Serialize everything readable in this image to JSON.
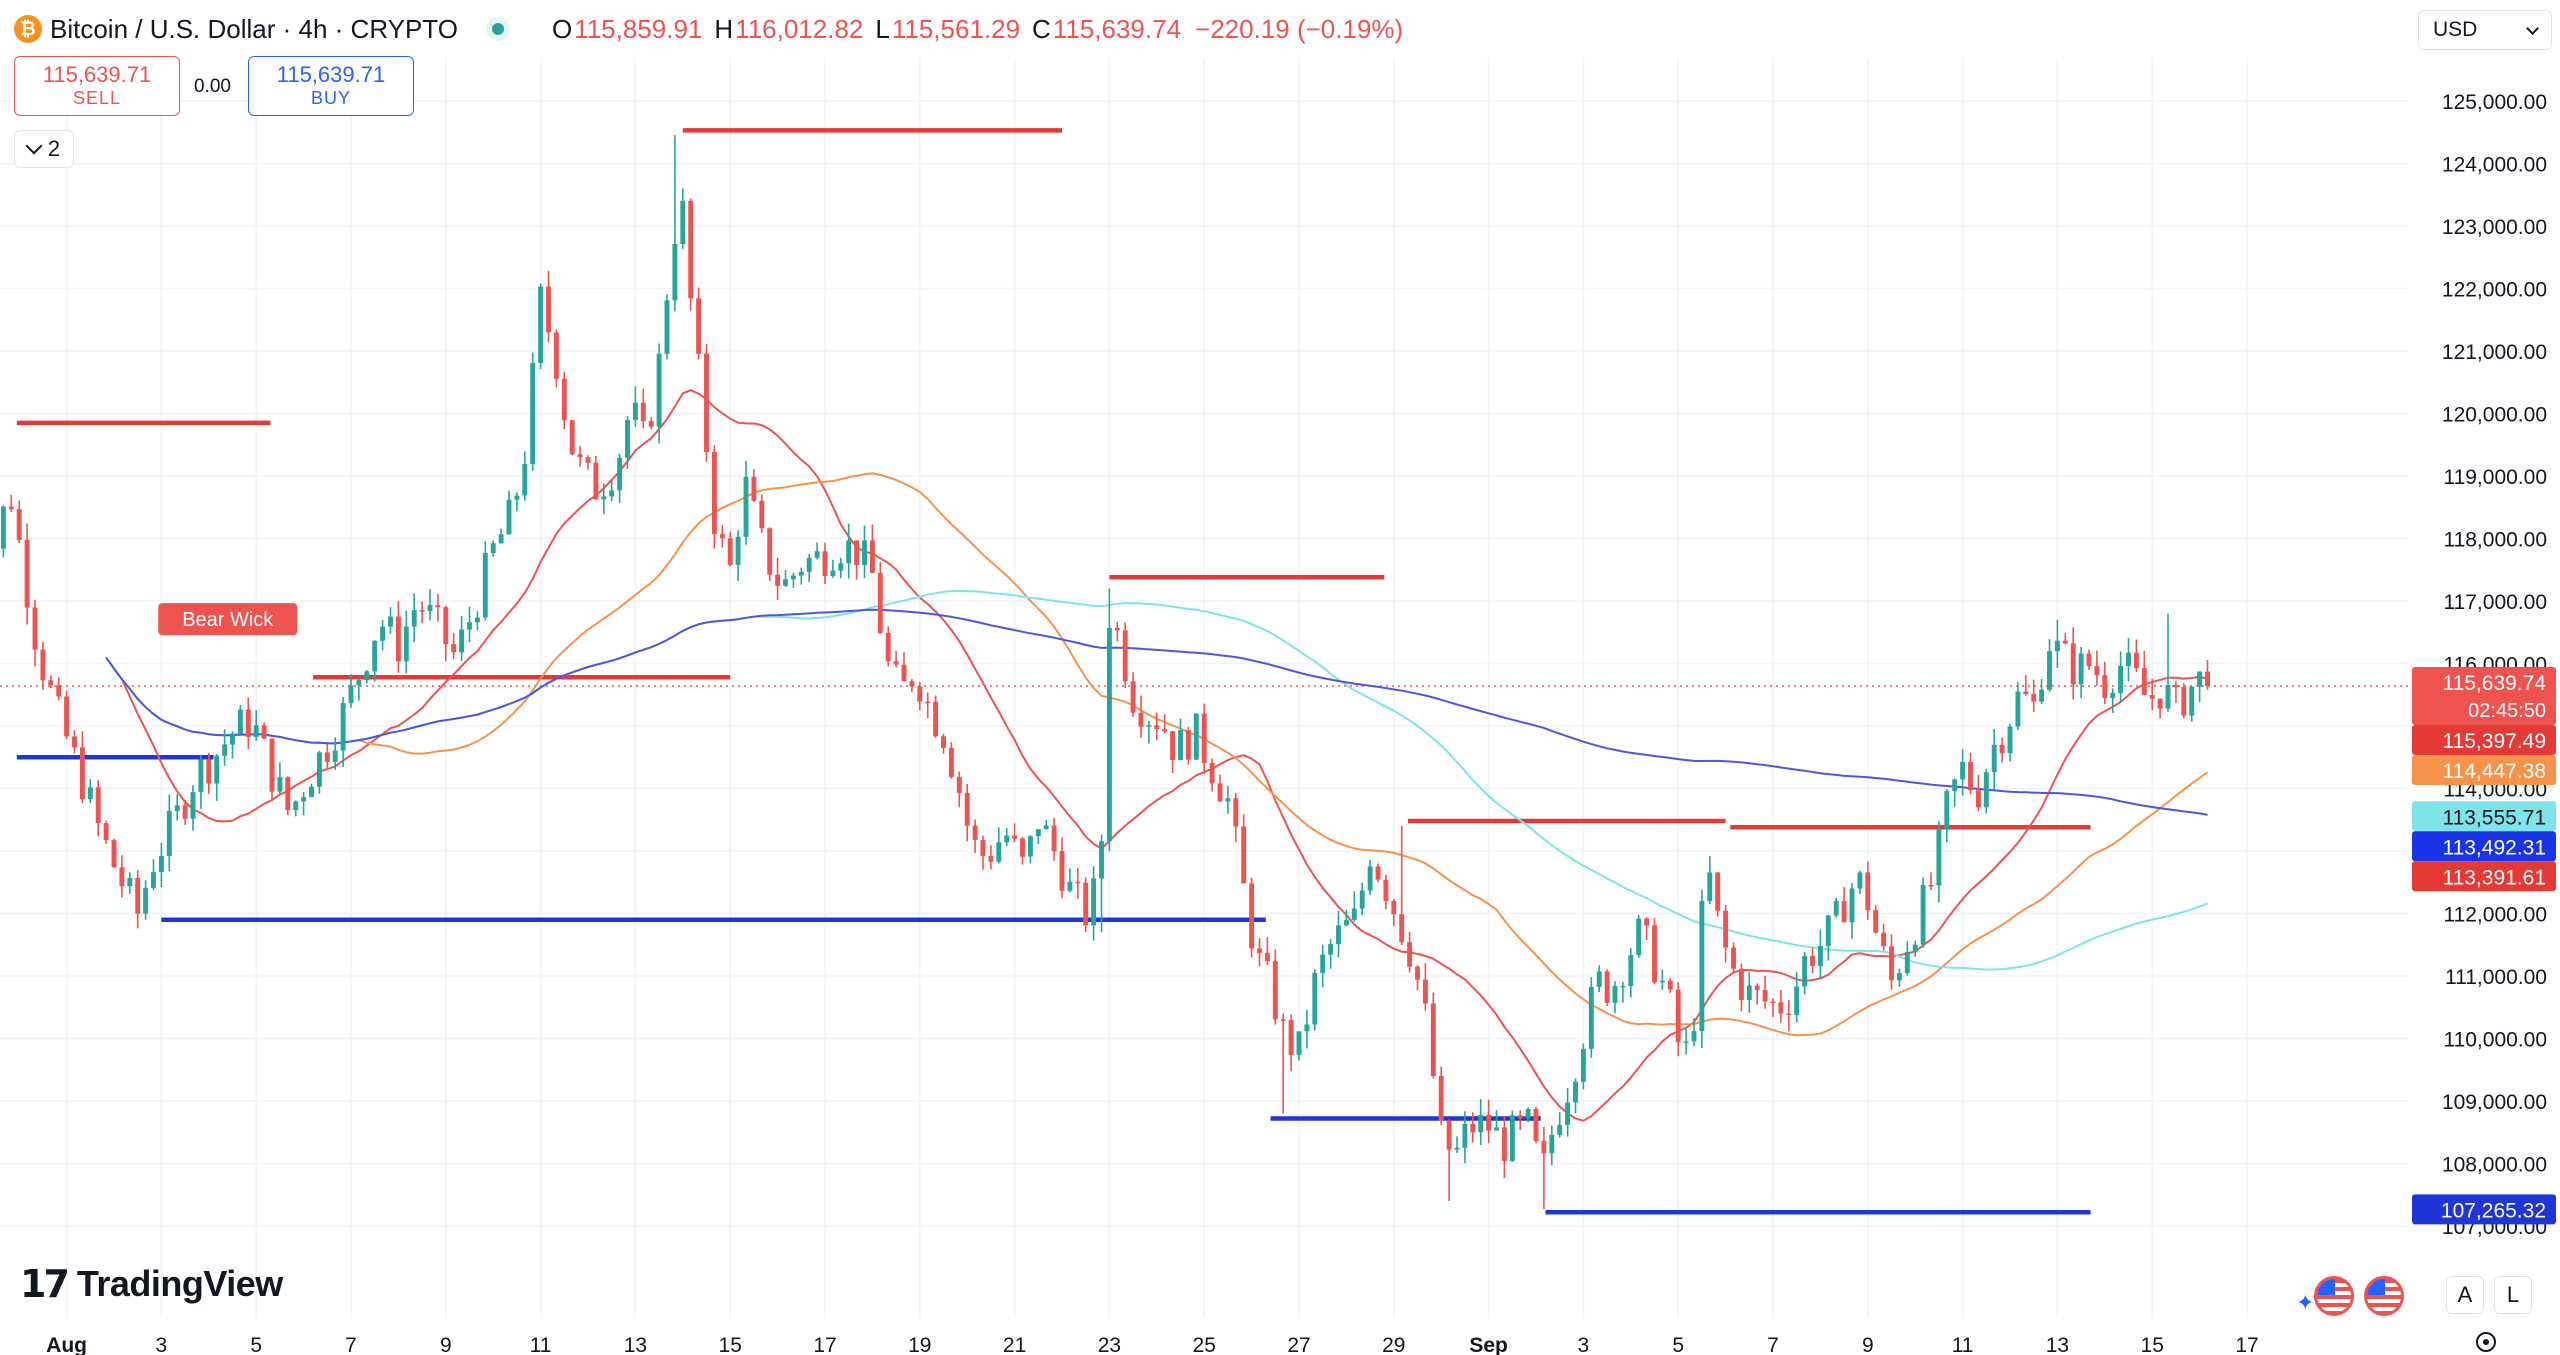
{
  "header": {
    "icon_glyph": "₿",
    "symbol": "Bitcoin / U.S. Dollar · 4h · CRYPTO",
    "open_label": "O",
    "open": "115,859.91",
    "high_label": "H",
    "high": "116,012.82",
    "low_label": "L",
    "low": "115,561.29",
    "close_label": "C",
    "close": "115,639.74",
    "change": "−220.19 (−0.19%)"
  },
  "trade": {
    "sell_price": "115,639.71",
    "sell_label": "SELL",
    "spread": "0.00",
    "buy_price": "115,639.71",
    "buy_label": "BUY"
  },
  "indicators_toggle": {
    "count": "2"
  },
  "currency": {
    "label": "USD"
  },
  "branding": {
    "logo_mark": "17",
    "name": "TradingView"
  },
  "bottom_controls": {
    "auto_label": "A",
    "log_label": "L",
    "flag_icon": "us-flag-icon",
    "settings_icon": "gear-icon"
  },
  "colors": {
    "up": "#26a69a",
    "down": "#ef5350",
    "resistance": "#e53935",
    "support": "#2035d6",
    "ma_fast": "#ef5350",
    "ma_mid": "#f7924b",
    "ma_slow_cyan": "#7fe3ea",
    "ma_slow_blue": "#4c57e0"
  },
  "chart_data": {
    "type": "candlestick",
    "timeframe": "4h",
    "ylim": [
      106700,
      125500
    ],
    "yticks": [
      107000,
      108000,
      109000,
      110000,
      111000,
      112000,
      113000,
      114000,
      115000,
      116000,
      117000,
      118000,
      119000,
      120000,
      121000,
      122000,
      123000,
      124000,
      125000
    ],
    "ytick_labels": [
      "107,000.00",
      "108,000.00",
      "109,000.00",
      "110,000.00",
      "111,000.00",
      "112,000.00",
      "113,000.00",
      "114,000.00",
      "115,000.00",
      "116,000.00",
      "117,000.00",
      "118,000.00",
      "119,000.00",
      "120,000.00",
      "121,000.00",
      "122,000.00",
      "123,000.00",
      "124,000.00",
      "125,000.00"
    ],
    "xlim": [
      -1.05,
      17.15
    ],
    "xticks": [
      {
        "day": 0,
        "label": "Aug",
        "bold": true
      },
      {
        "day": 2,
        "label": "3"
      },
      {
        "day": 4,
        "label": "5"
      },
      {
        "day": 6,
        "label": "7"
      },
      {
        "day": 8,
        "label": "9"
      },
      {
        "day": 10,
        "label": "11"
      },
      {
        "day": 12,
        "label": "13"
      },
      {
        "day": 14,
        "label": "15"
      },
      {
        "day": 16,
        "label": "17"
      },
      {
        "day": 18,
        "label": "19"
      },
      {
        "day": 20,
        "label": "21"
      },
      {
        "day": 22,
        "label": "23"
      },
      {
        "day": 24,
        "label": "25"
      },
      {
        "day": 26,
        "label": "27"
      },
      {
        "day": 28,
        "label": "29"
      },
      {
        "day": 30,
        "label": "Sep",
        "bold": true
      },
      {
        "day": 32,
        "label": "3"
      },
      {
        "day": 34,
        "label": "5"
      },
      {
        "day": 36,
        "label": "7"
      },
      {
        "day": 38,
        "label": "9"
      },
      {
        "day": 40,
        "label": "11"
      },
      {
        "day": 42,
        "label": "13"
      },
      {
        "day": 44,
        "label": "15"
      },
      {
        "day": 46,
        "label": "17"
      }
    ],
    "candles_per_day": 6,
    "start_day": -2.0,
    "close_path": [
      [
        -2.0,
        118000
      ],
      [
        -1.6,
        117600
      ],
      [
        -1.2,
        118800
      ],
      [
        -0.9,
        117500
      ],
      [
        -0.6,
        116200
      ],
      [
        -0.2,
        115200
      ],
      [
        0.3,
        114200
      ],
      [
        0.7,
        113300
      ],
      [
        1.1,
        112600
      ],
      [
        1.5,
        112000
      ],
      [
        1.8,
        112800
      ],
      [
        2.3,
        113500
      ],
      [
        2.7,
        114200
      ],
      [
        3.1,
        114500
      ],
      [
        3.5,
        114900
      ],
      [
        3.9,
        115100
      ],
      [
        4.3,
        114300
      ],
      [
        4.7,
        113600
      ],
      [
        5.1,
        114200
      ],
      [
        5.5,
        114700
      ],
      [
        5.9,
        115300
      ],
      [
        6.2,
        115900
      ],
      [
        6.6,
        116700
      ],
      [
        7.0,
        116300
      ],
      [
        7.4,
        117000
      ],
      [
        7.8,
        116600
      ],
      [
        8.2,
        116100
      ],
      [
        8.6,
        116900
      ],
      [
        9.0,
        117800
      ],
      [
        9.4,
        118400
      ],
      [
        9.7,
        119500
      ],
      [
        10.0,
        121800
      ],
      [
        10.3,
        121000
      ],
      [
        10.6,
        119600
      ],
      [
        10.9,
        119000
      ],
      [
        11.2,
        118800
      ],
      [
        11.6,
        119200
      ],
      [
        11.9,
        120100
      ],
      [
        12.2,
        119500
      ],
      [
        12.5,
        120800
      ],
      [
        12.8,
        122900
      ],
      [
        13.0,
        123200
      ],
      [
        13.2,
        121500
      ],
      [
        13.4,
        120200
      ],
      [
        13.7,
        118100
      ],
      [
        14.0,
        117500
      ],
      [
        14.3,
        118900
      ],
      [
        14.7,
        117800
      ],
      [
        15.1,
        117200
      ],
      [
        15.5,
        117600
      ],
      [
        15.9,
        117700
      ],
      [
        16.3,
        117900
      ],
      [
        16.7,
        117800
      ],
      [
        17.0,
        117400
      ],
      [
        17.3,
        116000
      ],
      [
        17.6,
        115500
      ],
      [
        17.9,
        115900
      ],
      [
        18.2,
        115300
      ],
      [
        18.5,
        114900
      ],
      [
        18.8,
        114100
      ],
      [
        19.1,
        113100
      ],
      [
        19.4,
        112900
      ],
      [
        19.8,
        113300
      ],
      [
        20.2,
        112700
      ],
      [
        20.5,
        113500
      ],
      [
        20.9,
        112900
      ],
      [
        21.2,
        112300
      ],
      [
        21.5,
        112000
      ],
      [
        21.8,
        112500
      ],
      [
        22.0,
        116800
      ],
      [
        22.2,
        116400
      ],
      [
        22.5,
        115500
      ],
      [
        22.8,
        115200
      ],
      [
        23.1,
        115100
      ],
      [
        23.4,
        114600
      ],
      [
        23.8,
        114900
      ],
      [
        24.2,
        114300
      ],
      [
        24.5,
        113800
      ],
      [
        24.8,
        112500
      ],
      [
        25.1,
        111300
      ],
      [
        25.4,
        110800
      ],
      [
        25.7,
        110000
      ],
      [
        26.0,
        109800
      ],
      [
        26.3,
        110800
      ],
      [
        26.6,
        111400
      ],
      [
        26.9,
        111700
      ],
      [
        27.2,
        111900
      ],
      [
        27.5,
        113000
      ],
      [
        27.8,
        112500
      ],
      [
        28.1,
        111900
      ],
      [
        28.4,
        111300
      ],
      [
        28.7,
        110200
      ],
      [
        29.0,
        108400
      ],
      [
        29.3,
        108100
      ],
      [
        29.6,
        108600
      ],
      [
        30.0,
        108600
      ],
      [
        30.3,
        108300
      ],
      [
        30.6,
        108500
      ],
      [
        30.9,
        108600
      ],
      [
        31.1,
        107700
      ],
      [
        31.4,
        108700
      ],
      [
        31.7,
        109300
      ],
      [
        32.0,
        110100
      ],
      [
        32.3,
        110900
      ],
      [
        32.6,
        110800
      ],
      [
        32.9,
        111300
      ],
      [
        33.2,
        111700
      ],
      [
        33.5,
        111200
      ],
      [
        33.8,
        110600
      ],
      [
        34.1,
        109600
      ],
      [
        34.3,
        110100
      ],
      [
        34.6,
        112800
      ],
      [
        34.9,
        111600
      ],
      [
        35.2,
        111000
      ],
      [
        35.5,
        110700
      ],
      [
        35.8,
        110600
      ],
      [
        36.1,
        110500
      ],
      [
        36.4,
        110700
      ],
      [
        36.7,
        111300
      ],
      [
        37.0,
        111500
      ],
      [
        37.3,
        111800
      ],
      [
        37.6,
        112400
      ],
      [
        37.9,
        112500
      ],
      [
        38.2,
        111600
      ],
      [
        38.5,
        110900
      ],
      [
        38.8,
        111500
      ],
      [
        39.1,
        112000
      ],
      [
        39.4,
        112600
      ],
      [
        39.7,
        113800
      ],
      [
        40.0,
        114300
      ],
      [
        40.3,
        113900
      ],
      [
        40.6,
        114600
      ],
      [
        40.9,
        115000
      ],
      [
        41.2,
        115500
      ],
      [
        41.5,
        115300
      ],
      [
        41.8,
        116400
      ],
      [
        42.1,
        116100
      ],
      [
        42.4,
        115900
      ],
      [
        42.7,
        116000
      ],
      [
        43.0,
        115700
      ],
      [
        43.3,
        116000
      ],
      [
        43.6,
        115800
      ],
      [
        43.9,
        115400
      ],
      [
        44.2,
        115600
      ],
      [
        44.5,
        115300
      ],
      [
        44.8,
        115600
      ],
      [
        45.1,
        115800
      ],
      [
        45.3,
        115640
      ]
    ],
    "spikes": [
      {
        "day": 12.9,
        "high": 124457
      },
      {
        "day": 13.0,
        "high": 123300
      },
      {
        "day": 10.1,
        "high": 122200
      },
      {
        "day": 22.0,
        "high": 117200
      },
      {
        "day": 21.9,
        "low": 111700
      },
      {
        "day": 31.2,
        "low": 107270
      },
      {
        "day": 29.2,
        "low": 107400
      },
      {
        "day": 1.6,
        "low": 111900
      },
      {
        "day": 25.6,
        "low": 108800
      },
      {
        "day": 42.0,
        "high": 116700
      },
      {
        "day": 44.4,
        "high": 116800
      },
      {
        "day": 28.2,
        "high": 113400
      }
    ],
    "last_price": 115639.74,
    "last_price_countdown": "02:45:50",
    "moving_averages": [
      {
        "period": 20,
        "color": "#ef5350",
        "label": "115,397.49"
      },
      {
        "period": 50,
        "color": "#f7924b",
        "label": "114,447.38"
      },
      {
        "period": 100,
        "color": "#7fe3ea",
        "label": "113,555.71"
      },
      {
        "period": 200,
        "color": "#4c57e0",
        "label": "113,492.31"
      }
    ],
    "horizontal_levels": [
      {
        "kind": "resistance",
        "price": 119850,
        "from": -1.05,
        "to": 4.3
      },
      {
        "kind": "resistance",
        "price": 124530,
        "from": 13.0,
        "to": 21.0
      },
      {
        "kind": "resistance",
        "price": 115780,
        "from": 5.2,
        "to": 14.0
      },
      {
        "kind": "resistance",
        "price": 117380,
        "from": 22.0,
        "to": 27.8
      },
      {
        "kind": "resistance",
        "price": 113480,
        "from": 28.3,
        "to": 35.0
      },
      {
        "kind": "resistance",
        "price": 113380,
        "from": 35.1,
        "to": 42.7
      },
      {
        "kind": "support",
        "price": 114500,
        "from": -1.05,
        "to": 3.1
      },
      {
        "kind": "support",
        "price": 111900,
        "from": 2.0,
        "to": 25.3
      },
      {
        "kind": "support",
        "price": 108720,
        "from": 25.4,
        "to": 31.1
      },
      {
        "kind": "support",
        "price": 107220,
        "from": 31.2,
        "to": 42.7
      }
    ],
    "annotations": [
      {
        "text": "Bear Wick",
        "day": 3.4,
        "price": 116390
      }
    ],
    "price_labels": [
      {
        "text": "115,639.74",
        "sub": "02:45:50",
        "bg": "#ef5350",
        "fg": "#ffffff",
        "price": 115639.74
      },
      {
        "text": "115,397.49",
        "bg": "#e53935",
        "fg": "#ffffff",
        "price": 115397.49
      },
      {
        "text": "114,447.38",
        "bg": "#f7924b",
        "fg": "#ffffff",
        "price": 114447.38
      },
      {
        "text": "113,555.71",
        "bg": "#7fe3ea",
        "fg": "#131722",
        "price": 113555.71
      },
      {
        "text": "113,492.31",
        "bg": "#1a33e6",
        "fg": "#ffffff",
        "price": 113492.31
      },
      {
        "text": "113,391.61",
        "bg": "#e53935",
        "fg": "#ffffff",
        "price": 113391.61
      },
      {
        "text": "107,265.32",
        "bg": "#2035d6",
        "fg": "#ffffff",
        "price": 107265.32
      }
    ]
  }
}
